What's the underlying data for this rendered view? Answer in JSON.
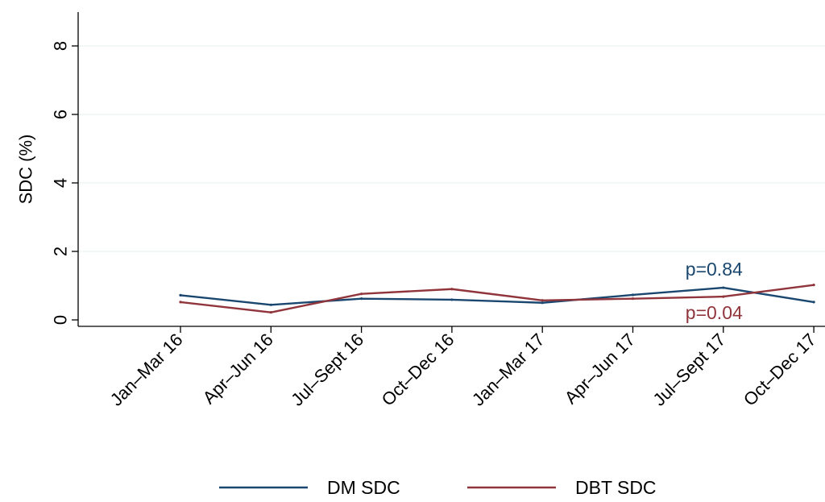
{
  "chart_data": {
    "type": "line",
    "title": "",
    "xlabel": "",
    "ylabel": "SDC (%)",
    "categories": [
      "Jan–Mar 16",
      "Apr–Jun 16",
      "Jul–Sept 16",
      "Oct–Dec 16",
      "Jan–Mar 17",
      "Apr–Jun 17",
      "Jul–Sept 17",
      "Oct–Dec 17"
    ],
    "ylim": [
      0,
      8
    ],
    "yticks": [
      0,
      2,
      4,
      6,
      8
    ],
    "ytick_labels": [
      "0",
      "2",
      "4",
      "6",
      "8"
    ],
    "grid": true,
    "legend_position": "bottom",
    "series": [
      {
        "name": "DM SDC",
        "color": "#1a476f",
        "values": [
          0.72,
          0.44,
          0.62,
          0.59,
          0.5,
          0.73,
          0.94,
          0.52
        ]
      },
      {
        "name": "DBT SDC",
        "color": "#90353b",
        "values": [
          0.52,
          0.22,
          0.76,
          0.9,
          0.57,
          0.62,
          0.68,
          1.02
        ]
      }
    ],
    "annotations": [
      {
        "text": "p=0.84",
        "series": "DM SDC",
        "color": "#1a476f"
      },
      {
        "text": "p=0.04",
        "series": "DBT SDC",
        "color": "#90353b"
      }
    ]
  }
}
